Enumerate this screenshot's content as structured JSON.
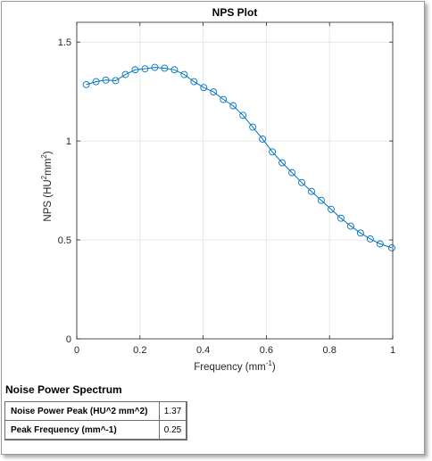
{
  "chart_data": {
    "type": "line",
    "title": "NPS Plot",
    "xlabel": "Frequency (mm",
    "xlabel_sup": "-1",
    "xlabel_close": ")",
    "ylabel_parts": [
      "NPS (HU",
      "2",
      "mm",
      "2",
      ")"
    ],
    "xlim": [
      0,
      1
    ],
    "ylim": [
      0,
      1.6
    ],
    "xticks": [
      0,
      0.2,
      0.4,
      0.6,
      0.8,
      1
    ],
    "xtick_labels": [
      "0",
      "0.2",
      "0.4",
      "0.6",
      "0.8",
      "1"
    ],
    "yticks": [
      0,
      0.5,
      1,
      1.5
    ],
    "ytick_labels": [
      "0",
      "0.5",
      "1",
      "1.5"
    ],
    "grid": true,
    "series": [
      {
        "color": "#0072BD",
        "marker": "circle",
        "x": [
          0.03,
          0.061,
          0.092,
          0.123,
          0.154,
          0.185,
          0.216,
          0.247,
          0.278,
          0.309,
          0.34,
          0.371,
          0.402,
          0.433,
          0.464,
          0.495,
          0.526,
          0.557,
          0.588,
          0.619,
          0.65,
          0.681,
          0.712,
          0.743,
          0.774,
          0.805,
          0.836,
          0.867,
          0.898,
          0.929,
          0.96,
          0.997
        ],
        "y": [
          1.285,
          1.3,
          1.308,
          1.305,
          1.336,
          1.36,
          1.365,
          1.372,
          1.368,
          1.36,
          1.336,
          1.3,
          1.27,
          1.248,
          1.21,
          1.178,
          1.13,
          1.07,
          1.01,
          0.945,
          0.89,
          0.84,
          0.79,
          0.745,
          0.7,
          0.655,
          0.61,
          0.57,
          0.535,
          0.505,
          0.48,
          0.46
        ]
      }
    ]
  },
  "results": {
    "title": "Noise Power Spectrum",
    "rows": [
      {
        "label": "Noise Power Peak (HU^2 mm^2)",
        "value": "1.37"
      },
      {
        "label": "Peak Frequency (mm^-1)",
        "value": "0.25"
      }
    ]
  }
}
